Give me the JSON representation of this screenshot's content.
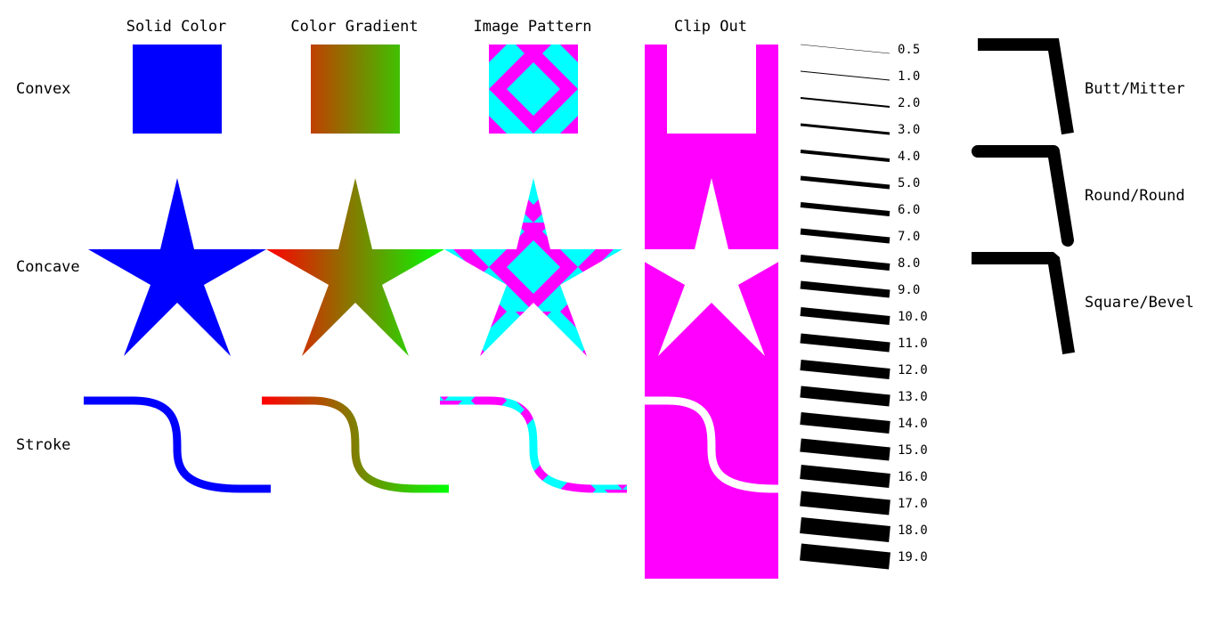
{
  "columns": {
    "solid": "Solid Color",
    "gradient": "Color Gradient",
    "pattern": "Image Pattern",
    "clip": "Clip Out"
  },
  "rows": {
    "convex": "Convex",
    "concave": "Concave",
    "stroke": "Stroke"
  },
  "colors": {
    "solid": "#0000ff",
    "gradient_start": "#ff0000",
    "gradient_end": "#00ff00",
    "pattern_a": "#ff00ff",
    "pattern_b": "#00ffff",
    "clip": "#ff00ff",
    "stroke_lines": "#000000"
  },
  "line_widths": [
    "0.5",
    "1.0",
    "2.0",
    "3.0",
    "4.0",
    "5.0",
    "6.0",
    "7.0",
    "8.0",
    "9.0",
    "10.0",
    "11.0",
    "12.0",
    "13.0",
    "14.0",
    "15.0",
    "16.0",
    "17.0",
    "18.0",
    "19.0"
  ],
  "joins": {
    "butt_miter": "Butt/Mitter",
    "round_round": "Round/Round",
    "square_bevel": "Square/Bevel"
  }
}
